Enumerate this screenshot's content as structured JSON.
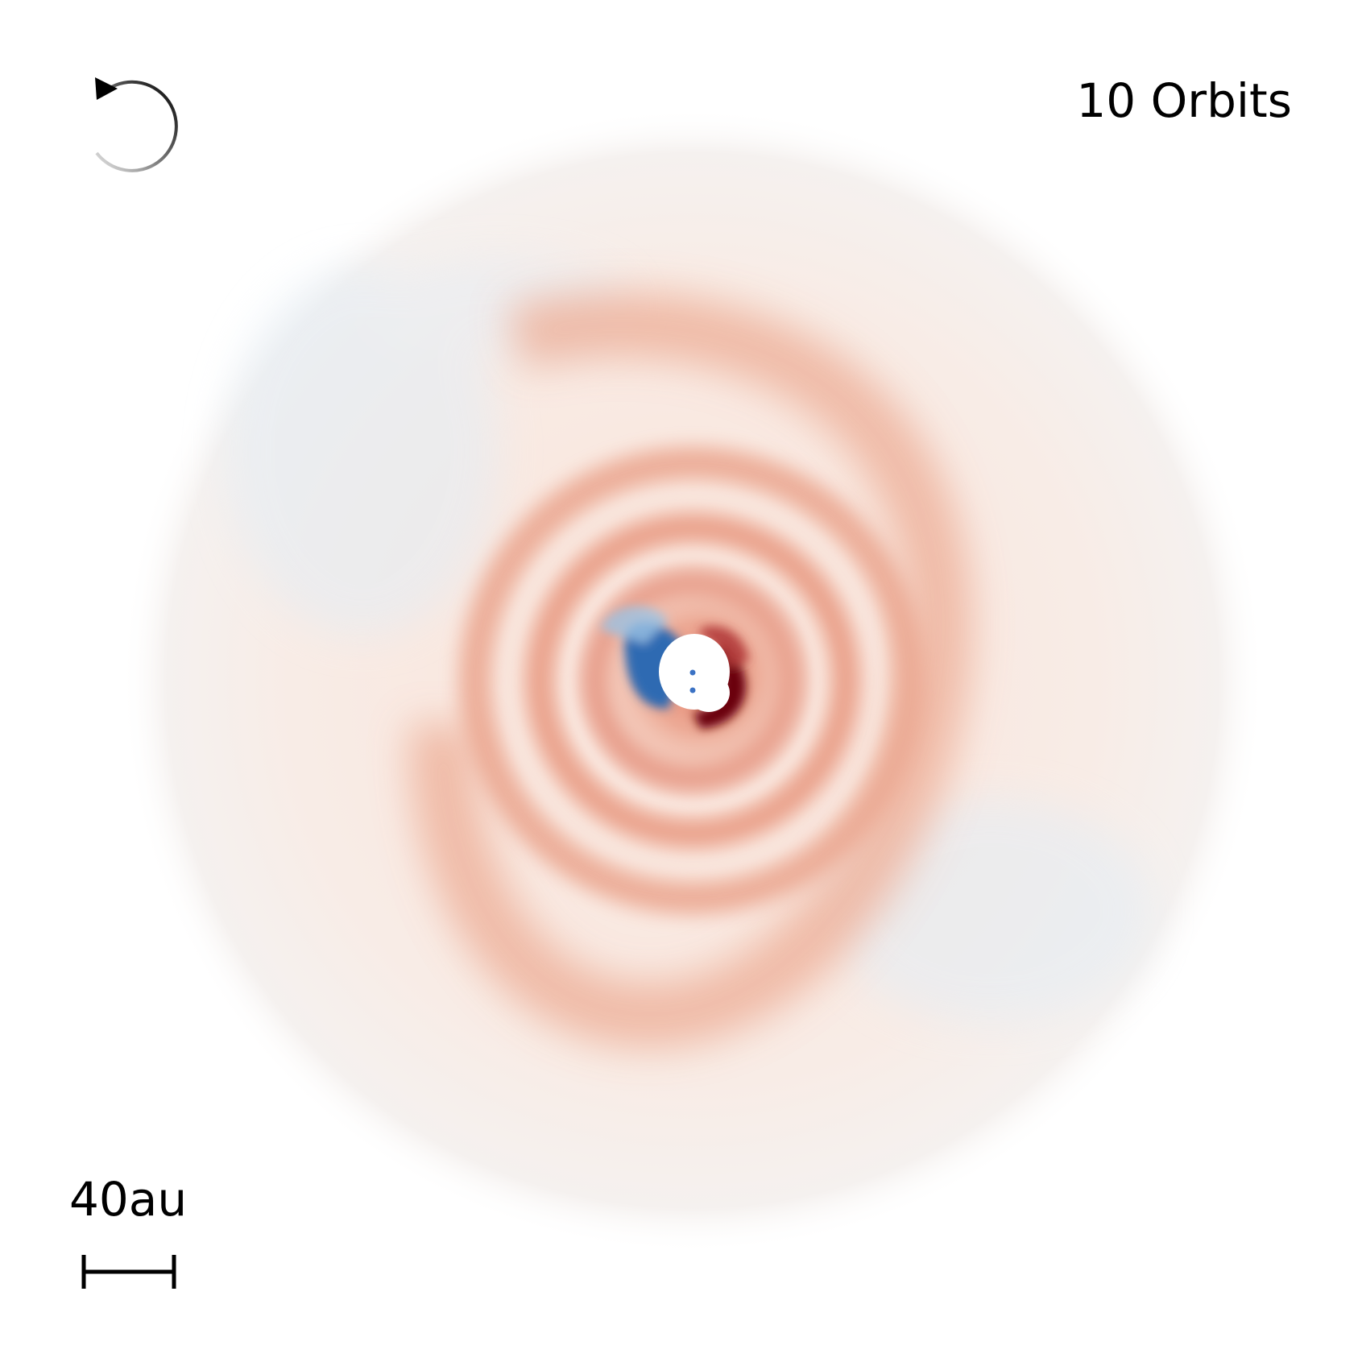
{
  "orbits_label": "10 Orbits",
  "scale_label": "40au",
  "icons": {
    "rotation": "counterclockwise-rotation-arrow-icon"
  },
  "colors": {
    "background": "#ffffff",
    "text": "#000000",
    "colormap_positive": "#c0392b",
    "colormap_strong_positive": "#67000d",
    "colormap_negative": "#2166ac",
    "colormap_neutral": "#f7f7f7"
  }
}
